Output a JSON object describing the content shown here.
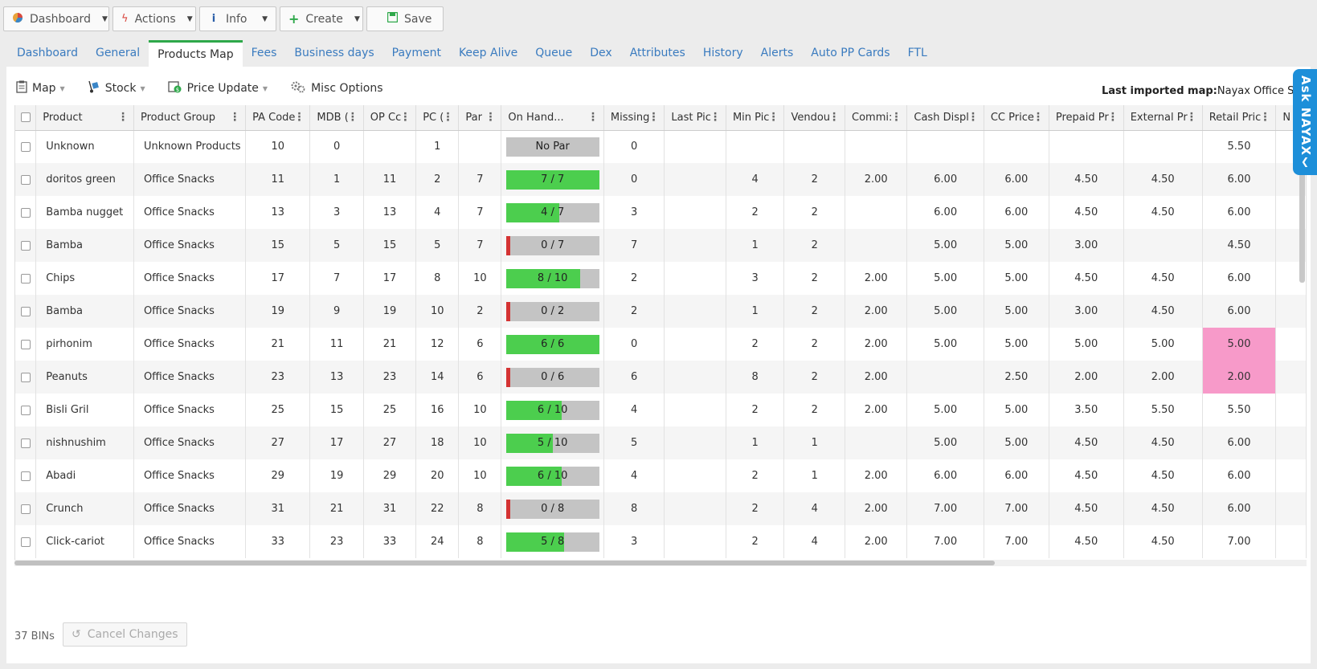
{
  "toolbar": {
    "dashboard": "Dashboard",
    "actions": "Actions",
    "info": "Info",
    "create": "Create",
    "save": "Save"
  },
  "tabs": [
    "Dashboard",
    "General",
    "Products Map",
    "Fees",
    "Business days",
    "Payment",
    "Keep Alive",
    "Queue",
    "Dex",
    "Attributes",
    "History",
    "Alerts",
    "Auto PP Cards",
    "FTL"
  ],
  "active_tab": "Products Map",
  "subbar": {
    "map": "Map",
    "stock": "Stock",
    "price_update": "Price Update",
    "misc_options": "Misc Options",
    "last_imported_label": "Last imported map:",
    "last_imported_value": "Nayax Office Snac"
  },
  "ask_nayax": "Ask NAYAX",
  "columns": [
    "Product",
    "Product Group",
    "PA Code",
    "MDB (",
    "OP Cc",
    "PC (",
    "Par",
    "On Hand...",
    "Missing",
    "Last Pic",
    "Min Pic",
    "Vendou",
    "Commi:",
    "Cash Displ",
    "CC Price",
    "Prepaid Pr",
    "External Pr",
    "Retail Pric",
    "N"
  ],
  "rows": [
    {
      "product": "Unknown",
      "group": "Unknown Products",
      "pa": "10",
      "mdb": "0",
      "op": "",
      "pc": "1",
      "par": "",
      "onhand": "No Par",
      "fill": 1,
      "low": false,
      "nopar": true,
      "missing": "0",
      "lastpic": "",
      "minpic": "",
      "vendou": "",
      "commi": "",
      "cash": "",
      "cc": "",
      "prepaid": "",
      "external": "",
      "retail": "5.50",
      "pink": false
    },
    {
      "product": "doritos green",
      "group": "Office Snacks",
      "pa": "11",
      "mdb": "1",
      "op": "11",
      "pc": "2",
      "par": "7",
      "onhand": "7 / 7",
      "fill": 1,
      "low": false,
      "nopar": false,
      "missing": "0",
      "lastpic": "",
      "minpic": "4",
      "vendou": "2",
      "commi": "2.00",
      "cash": "6.00",
      "cc": "6.00",
      "prepaid": "4.50",
      "external": "4.50",
      "retail": "6.00",
      "pink": false
    },
    {
      "product": "Bamba nugget",
      "group": "Office Snacks",
      "pa": "13",
      "mdb": "3",
      "op": "13",
      "pc": "4",
      "par": "7",
      "onhand": "4 / 7",
      "fill": 0.571,
      "low": false,
      "nopar": false,
      "missing": "3",
      "lastpic": "",
      "minpic": "2",
      "vendou": "2",
      "commi": "",
      "cash": "6.00",
      "cc": "6.00",
      "prepaid": "4.50",
      "external": "4.50",
      "retail": "6.00",
      "pink": false
    },
    {
      "product": "Bamba",
      "group": "Office Snacks",
      "pa": "15",
      "mdb": "5",
      "op": "15",
      "pc": "5",
      "par": "7",
      "onhand": "0 / 7",
      "fill": 0,
      "low": true,
      "nopar": false,
      "missing": "7",
      "lastpic": "",
      "minpic": "1",
      "vendou": "2",
      "commi": "",
      "cash": "5.00",
      "cc": "5.00",
      "prepaid": "3.00",
      "external": "",
      "retail": "4.50",
      "pink": false
    },
    {
      "product": "Chips",
      "group": "Office Snacks",
      "pa": "17",
      "mdb": "7",
      "op": "17",
      "pc": "8",
      "par": "10",
      "onhand": "8 / 10",
      "fill": 0.8,
      "low": false,
      "nopar": false,
      "missing": "2",
      "lastpic": "",
      "minpic": "3",
      "vendou": "2",
      "commi": "2.00",
      "cash": "5.00",
      "cc": "5.00",
      "prepaid": "4.50",
      "external": "4.50",
      "retail": "6.00",
      "pink": false
    },
    {
      "product": "Bamba",
      "group": "Office Snacks",
      "pa": "19",
      "mdb": "9",
      "op": "19",
      "pc": "10",
      "par": "2",
      "onhand": "0 / 2",
      "fill": 0,
      "low": true,
      "nopar": false,
      "missing": "2",
      "lastpic": "",
      "minpic": "1",
      "vendou": "2",
      "commi": "2.00",
      "cash": "5.00",
      "cc": "5.00",
      "prepaid": "3.00",
      "external": "4.50",
      "retail": "6.00",
      "pink": false
    },
    {
      "product": "pirhonim",
      "group": "Office Snacks",
      "pa": "21",
      "mdb": "11",
      "op": "21",
      "pc": "12",
      "par": "6",
      "onhand": "6 / 6",
      "fill": 1,
      "low": false,
      "nopar": false,
      "missing": "0",
      "lastpic": "",
      "minpic": "2",
      "vendou": "2",
      "commi": "2.00",
      "cash": "5.00",
      "cc": "5.00",
      "prepaid": "5.00",
      "external": "5.00",
      "retail": "5.00",
      "pink": true
    },
    {
      "product": "Peanuts",
      "group": "Office Snacks",
      "pa": "23",
      "mdb": "13",
      "op": "23",
      "pc": "14",
      "par": "6",
      "onhand": "0 / 6",
      "fill": 0,
      "low": true,
      "nopar": false,
      "missing": "6",
      "lastpic": "",
      "minpic": "8",
      "vendou": "2",
      "commi": "2.00",
      "cash": "",
      "cc": "2.50",
      "prepaid": "2.00",
      "external": "2.00",
      "retail": "2.00",
      "pink": true
    },
    {
      "product": "Bisli Gril",
      "group": "Office Snacks",
      "pa": "25",
      "mdb": "15",
      "op": "25",
      "pc": "16",
      "par": "10",
      "onhand": "6 / 10",
      "fill": 0.6,
      "low": false,
      "nopar": false,
      "missing": "4",
      "lastpic": "",
      "minpic": "2",
      "vendou": "2",
      "commi": "2.00",
      "cash": "5.00",
      "cc": "5.00",
      "prepaid": "3.50",
      "external": "5.50",
      "retail": "5.50",
      "pink": false
    },
    {
      "product": "nishnushim",
      "group": "Office Snacks",
      "pa": "27",
      "mdb": "17",
      "op": "27",
      "pc": "18",
      "par": "10",
      "onhand": "5 / 10",
      "fill": 0.5,
      "low": false,
      "nopar": false,
      "missing": "5",
      "lastpic": "",
      "minpic": "1",
      "vendou": "1",
      "commi": "",
      "cash": "5.00",
      "cc": "5.00",
      "prepaid": "4.50",
      "external": "4.50",
      "retail": "6.00",
      "pink": false
    },
    {
      "product": "Abadi",
      "group": "Office Snacks",
      "pa": "29",
      "mdb": "19",
      "op": "29",
      "pc": "20",
      "par": "10",
      "onhand": "6 / 10",
      "fill": 0.6,
      "low": false,
      "nopar": false,
      "missing": "4",
      "lastpic": "",
      "minpic": "2",
      "vendou": "1",
      "commi": "2.00",
      "cash": "6.00",
      "cc": "6.00",
      "prepaid": "4.50",
      "external": "4.50",
      "retail": "6.00",
      "pink": false
    },
    {
      "product": "Crunch",
      "group": "Office Snacks",
      "pa": "31",
      "mdb": "21",
      "op": "31",
      "pc": "22",
      "par": "8",
      "onhand": "0 / 8",
      "fill": 0,
      "low": true,
      "nopar": false,
      "missing": "8",
      "lastpic": "",
      "minpic": "2",
      "vendou": "4",
      "commi": "2.00",
      "cash": "7.00",
      "cc": "7.00",
      "prepaid": "4.50",
      "external": "4.50",
      "retail": "6.00",
      "pink": false
    },
    {
      "product": "Click-cariot",
      "group": "Office Snacks",
      "pa": "33",
      "mdb": "23",
      "op": "33",
      "pc": "24",
      "par": "8",
      "onhand": "5 / 8",
      "fill": 0.625,
      "low": false,
      "nopar": false,
      "missing": "3",
      "lastpic": "",
      "minpic": "2",
      "vendou": "4",
      "commi": "2.00",
      "cash": "7.00",
      "cc": "7.00",
      "prepaid": "4.50",
      "external": "4.50",
      "retail": "7.00",
      "pink": false
    }
  ],
  "footer": {
    "count": "37 BINs",
    "cancel": "Cancel Changes"
  }
}
